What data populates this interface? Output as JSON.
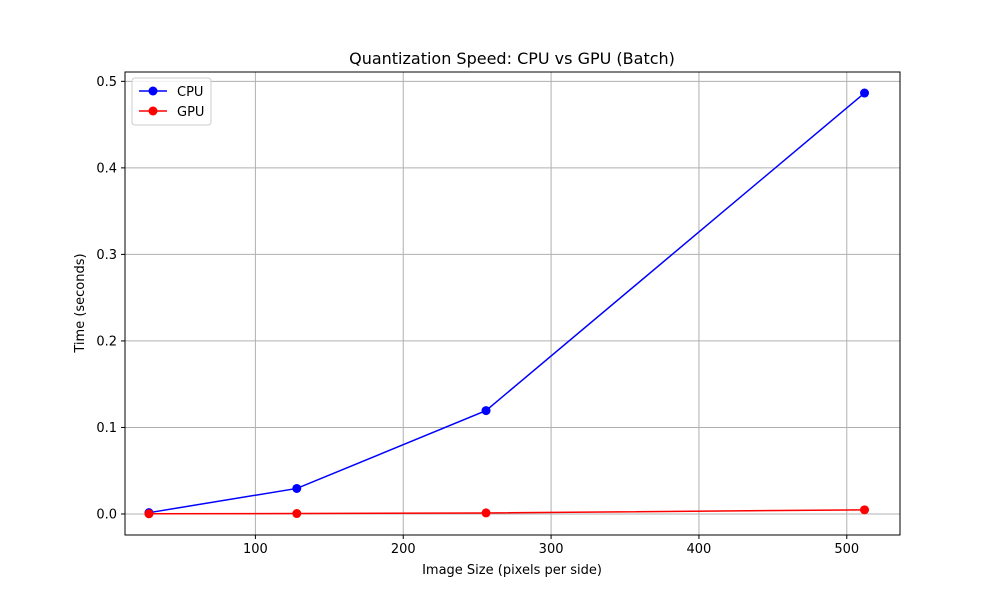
{
  "chart_data": {
    "type": "line",
    "title": "Quantization Speed: CPU vs GPU (Batch)",
    "xlabel": "Image Size (pixels per side)",
    "ylabel": "Time (seconds)",
    "x": [
      28,
      128,
      256,
      512
    ],
    "series": [
      {
        "name": "CPU",
        "color": "#0000ff",
        "values": [
          0.0015,
          0.0295,
          0.1195,
          0.4865
        ]
      },
      {
        "name": "GPU",
        "color": "#ff0000",
        "values": [
          0.0002,
          0.0005,
          0.0012,
          0.0048
        ]
      }
    ],
    "xlim": [
      11.8,
      536
    ],
    "ylim": [
      -0.0243,
      0.5108
    ],
    "xticks": [
      100,
      200,
      300,
      400,
      500
    ],
    "xtick_labels": [
      "100",
      "200",
      "300",
      "400",
      "500"
    ],
    "yticks": [
      0.0,
      0.1,
      0.2,
      0.3,
      0.4,
      0.5
    ],
    "ytick_labels": [
      "0.0",
      "0.1",
      "0.2",
      "0.3",
      "0.4",
      "0.5"
    ],
    "grid": true,
    "legend_position": "top-left",
    "markers": "circle"
  }
}
